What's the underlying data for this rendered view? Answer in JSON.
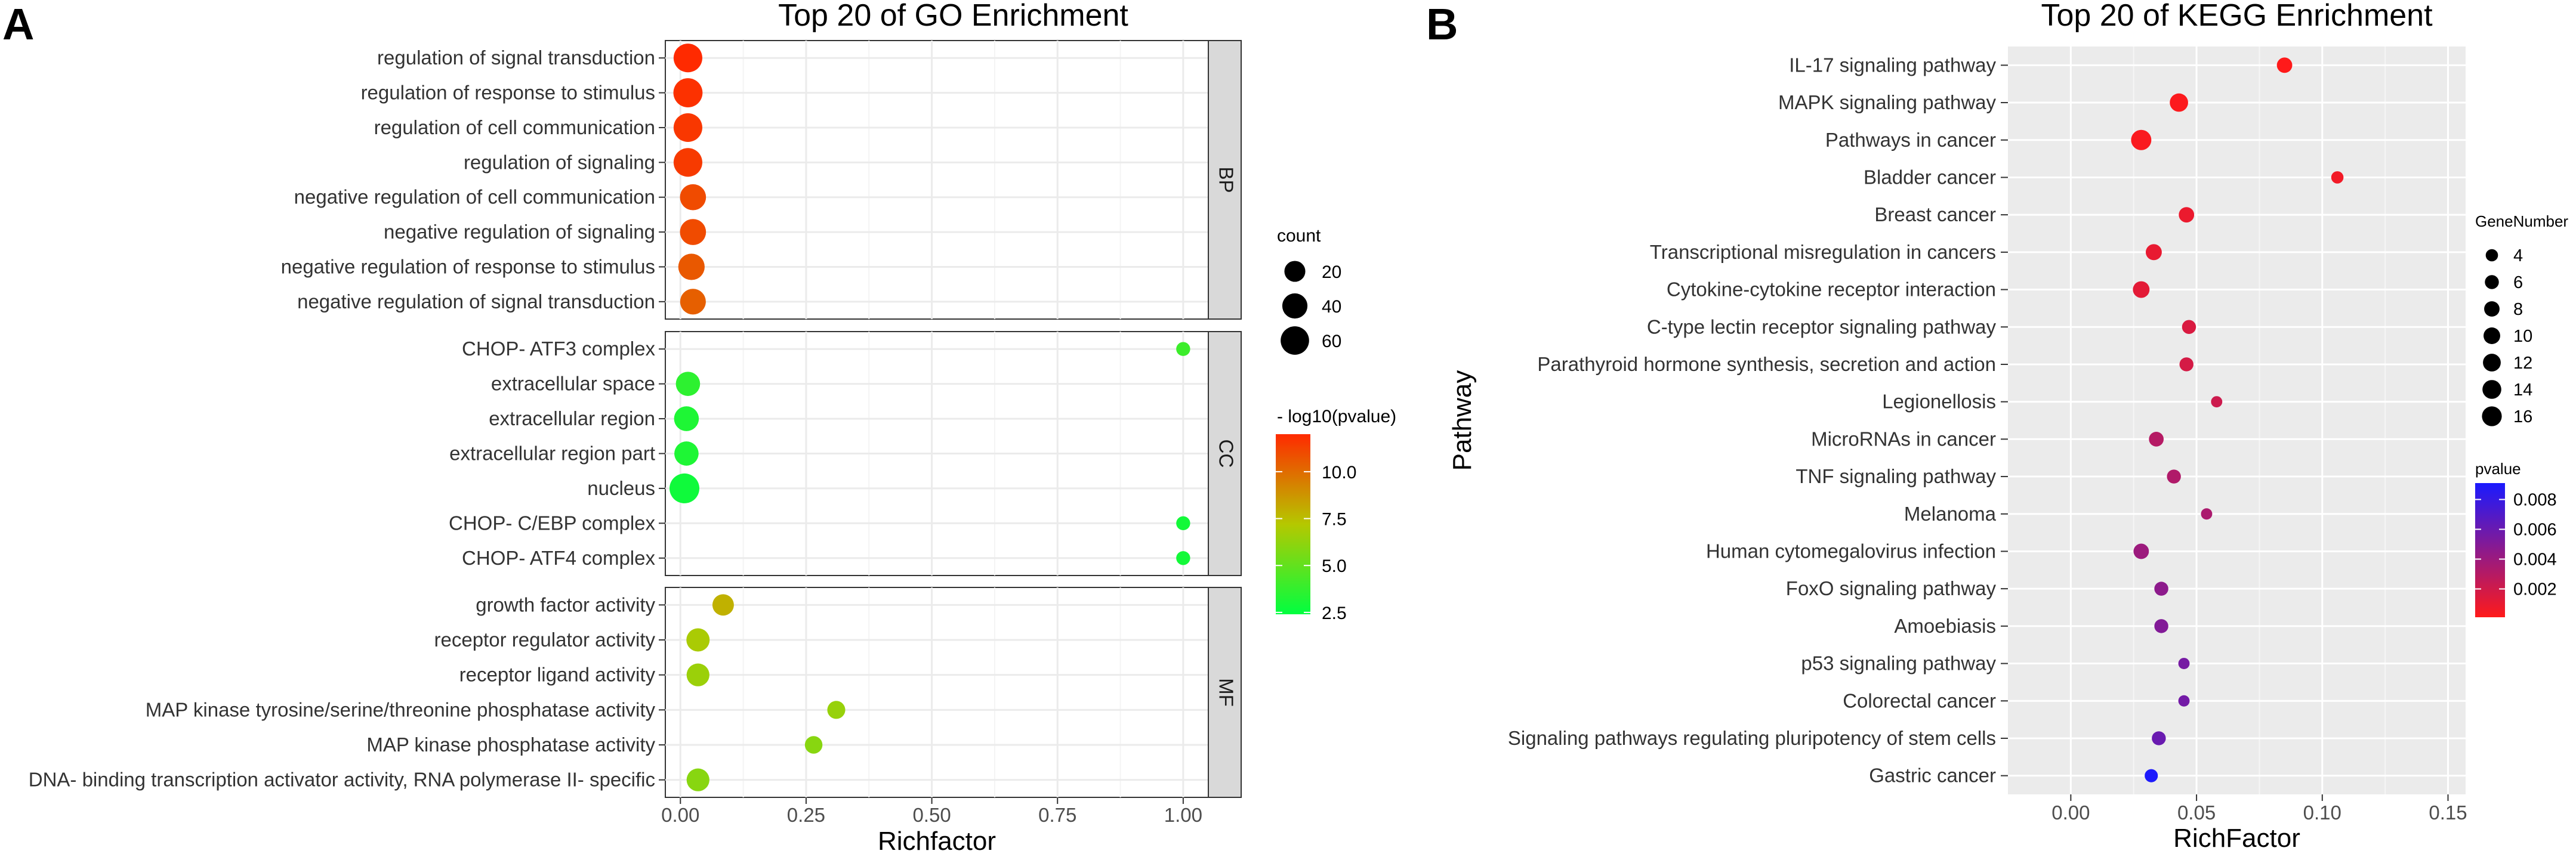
{
  "chart_data": [
    {
      "panel_label": "A",
      "type": "scatter",
      "title": "Top 20 of GO Enrichment",
      "xlabel": "Richfactor",
      "ylabel": "",
      "xlim": [
        -0.03,
        1.05
      ],
      "xticks": [
        0,
        0.25,
        0.5,
        0.75,
        1.0
      ],
      "xtick_labels": [
        "0.00",
        "0.25",
        "0.50",
        "0.75",
        "1.00"
      ],
      "grid": true,
      "facets": [
        {
          "name": "BP",
          "points": [
            {
              "term": "regulation of signal transduction",
              "x": 0.015,
              "count": 62,
              "neglog10p": 12.0
            },
            {
              "term": "regulation of response to stimulus",
              "x": 0.015,
              "count": 65,
              "neglog10p": 11.8
            },
            {
              "term": "regulation of cell communication",
              "x": 0.015,
              "count": 62,
              "neglog10p": 11.6
            },
            {
              "term": "regulation of signaling",
              "x": 0.015,
              "count": 62,
              "neglog10p": 11.5
            },
            {
              "term": "negative regulation of cell communication",
              "x": 0.025,
              "count": 45,
              "neglog10p": 11.0
            },
            {
              "term": "negative regulation of signaling",
              "x": 0.025,
              "count": 45,
              "neglog10p": 11.0
            },
            {
              "term": "negative regulation of response to stimulus",
              "x": 0.022,
              "count": 47,
              "neglog10p": 10.6
            },
            {
              "term": "negative regulation of signal transduction",
              "x": 0.025,
              "count": 43,
              "neglog10p": 10.4
            }
          ]
        },
        {
          "name": "CC",
          "points": [
            {
              "term": "CHOP- ATF3 complex",
              "x": 1.0,
              "count": 2,
              "neglog10p": 4.0
            },
            {
              "term": "extracellular space",
              "x": 0.015,
              "count": 35,
              "neglog10p": 3.6
            },
            {
              "term": "extracellular region",
              "x": 0.012,
              "count": 38,
              "neglog10p": 3.2
            },
            {
              "term": "extracellular region part",
              "x": 0.012,
              "count": 35,
              "neglog10p": 3.2
            },
            {
              "term": "nucleus",
              "x": 0.008,
              "count": 70,
              "neglog10p": 2.8
            },
            {
              "term": "CHOP- C/EBP complex",
              "x": 1.0,
              "count": 2,
              "neglog10p": 2.9
            },
            {
              "term": "CHOP- ATF4 complex",
              "x": 1.0,
              "count": 2,
              "neglog10p": 2.9
            }
          ]
        },
        {
          "name": "MF",
          "points": [
            {
              "term": "growth factor activity",
              "x": 0.085,
              "count": 22,
              "neglog10p": 7.9
            },
            {
              "term": "receptor regulator activity",
              "x": 0.035,
              "count": 30,
              "neglog10p": 6.9
            },
            {
              "term": "receptor ligand activity",
              "x": 0.035,
              "count": 28,
              "neglog10p": 6.5
            },
            {
              "term": "MAP kinase tyrosine/serine/threonine phosphatase activity",
              "x": 0.31,
              "count": 10,
              "neglog10p": 6.4
            },
            {
              "term": "MAP kinase phosphatase activity",
              "x": 0.265,
              "count": 9,
              "neglog10p": 6.0
            },
            {
              "term": "DNA- binding transcription activator activity, RNA polymerase II- specific",
              "x": 0.035,
              "count": 28,
              "neglog10p": 6.0
            }
          ]
        }
      ],
      "legend_size": {
        "title": "count",
        "values": [
          20,
          40,
          60
        ],
        "labels": [
          "20",
          "40",
          "60"
        ]
      },
      "legend_color": {
        "title": "- log10(pvalue)",
        "range": [
          2.4,
          12.0
        ],
        "ticks": [
          2.5,
          5.0,
          7.5,
          10.0
        ],
        "tick_labels": [
          "2.5",
          "5.0",
          "7.5",
          "10.0"
        ],
        "low_color": "#00ff40",
        "mid_color": "#b5c800",
        "high_color": "#ff2a00"
      }
    },
    {
      "panel_label": "B",
      "type": "scatter",
      "title": "Top 20 of KEGG Enrichment",
      "xlabel": "RichFactor",
      "ylabel": "Pathway",
      "xlim": [
        -0.025,
        0.157
      ],
      "xticks": [
        0,
        0.05,
        0.1,
        0.15
      ],
      "xtick_labels": [
        "0.00",
        "0.05",
        "0.10",
        "0.15"
      ],
      "grid": true,
      "panel_background": "#ebebeb",
      "grid_color": "#ffffff",
      "points": [
        {
          "term": "IL-17 signaling pathway",
          "x": 0.085,
          "gene_number": 8,
          "pvalue": 0.0001
        },
        {
          "term": "MAPK signaling pathway",
          "x": 0.043,
          "gene_number": 13,
          "pvalue": 0.0002
        },
        {
          "term": "Pathways in cancer",
          "x": 0.028,
          "gene_number": 17,
          "pvalue": 0.0003
        },
        {
          "term": "Bladder cancer",
          "x": 0.106,
          "gene_number": 4,
          "pvalue": 0.0006
        },
        {
          "term": "Breast cancer",
          "x": 0.046,
          "gene_number": 8,
          "pvalue": 0.0009
        },
        {
          "term": "Transcriptional misregulation in cancers",
          "x": 0.033,
          "gene_number": 9,
          "pvalue": 0.001
        },
        {
          "term": "Cytokine-cytokine receptor interaction",
          "x": 0.028,
          "gene_number": 10,
          "pvalue": 0.0012
        },
        {
          "term": "C-type lectin receptor signaling pathway",
          "x": 0.047,
          "gene_number": 6,
          "pvalue": 0.0016
        },
        {
          "term": "Parathyroid hormone synthesis, secretion and action",
          "x": 0.046,
          "gene_number": 6,
          "pvalue": 0.0018
        },
        {
          "term": "Legionellosis",
          "x": 0.058,
          "gene_number": 3,
          "pvalue": 0.0021
        },
        {
          "term": "MicroRNAs in cancer",
          "x": 0.034,
          "gene_number": 7,
          "pvalue": 0.003
        },
        {
          "term": "TNF signaling pathway",
          "x": 0.041,
          "gene_number": 6,
          "pvalue": 0.0032
        },
        {
          "term": "Melanoma",
          "x": 0.054,
          "gene_number": 3,
          "pvalue": 0.0034
        },
        {
          "term": "Human cytomegalovirus infection",
          "x": 0.028,
          "gene_number": 8,
          "pvalue": 0.004
        },
        {
          "term": "FoxO signaling pathway",
          "x": 0.036,
          "gene_number": 6,
          "pvalue": 0.0046
        },
        {
          "term": "Amoebiasis",
          "x": 0.036,
          "gene_number": 6,
          "pvalue": 0.005
        },
        {
          "term": "p53 signaling pathway",
          "x": 0.045,
          "gene_number": 3,
          "pvalue": 0.0055
        },
        {
          "term": "Colorectal cancer",
          "x": 0.045,
          "gene_number": 3,
          "pvalue": 0.0056
        },
        {
          "term": "Signaling pathways regulating pluripotency of stem cells",
          "x": 0.035,
          "gene_number": 6,
          "pvalue": 0.006
        },
        {
          "term": "Gastric cancer",
          "x": 0.032,
          "gene_number": 5,
          "pvalue": 0.009
        }
      ],
      "legend_size": {
        "title": "GeneNumber",
        "values": [
          4,
          6,
          8,
          10,
          12,
          14,
          16
        ],
        "labels": [
          "4",
          "6",
          "8",
          "10",
          "12",
          "14",
          "16"
        ]
      },
      "legend_color": {
        "title": "pvalue",
        "range": [
          0.0001,
          0.0091
        ],
        "ticks": [
          0.002,
          0.004,
          0.006,
          0.008
        ],
        "tick_labels": [
          "0.002",
          "0.004",
          "0.006",
          "0.008"
        ],
        "low_color": "#ff1a1a",
        "high_color": "#1a1aff"
      }
    }
  ]
}
